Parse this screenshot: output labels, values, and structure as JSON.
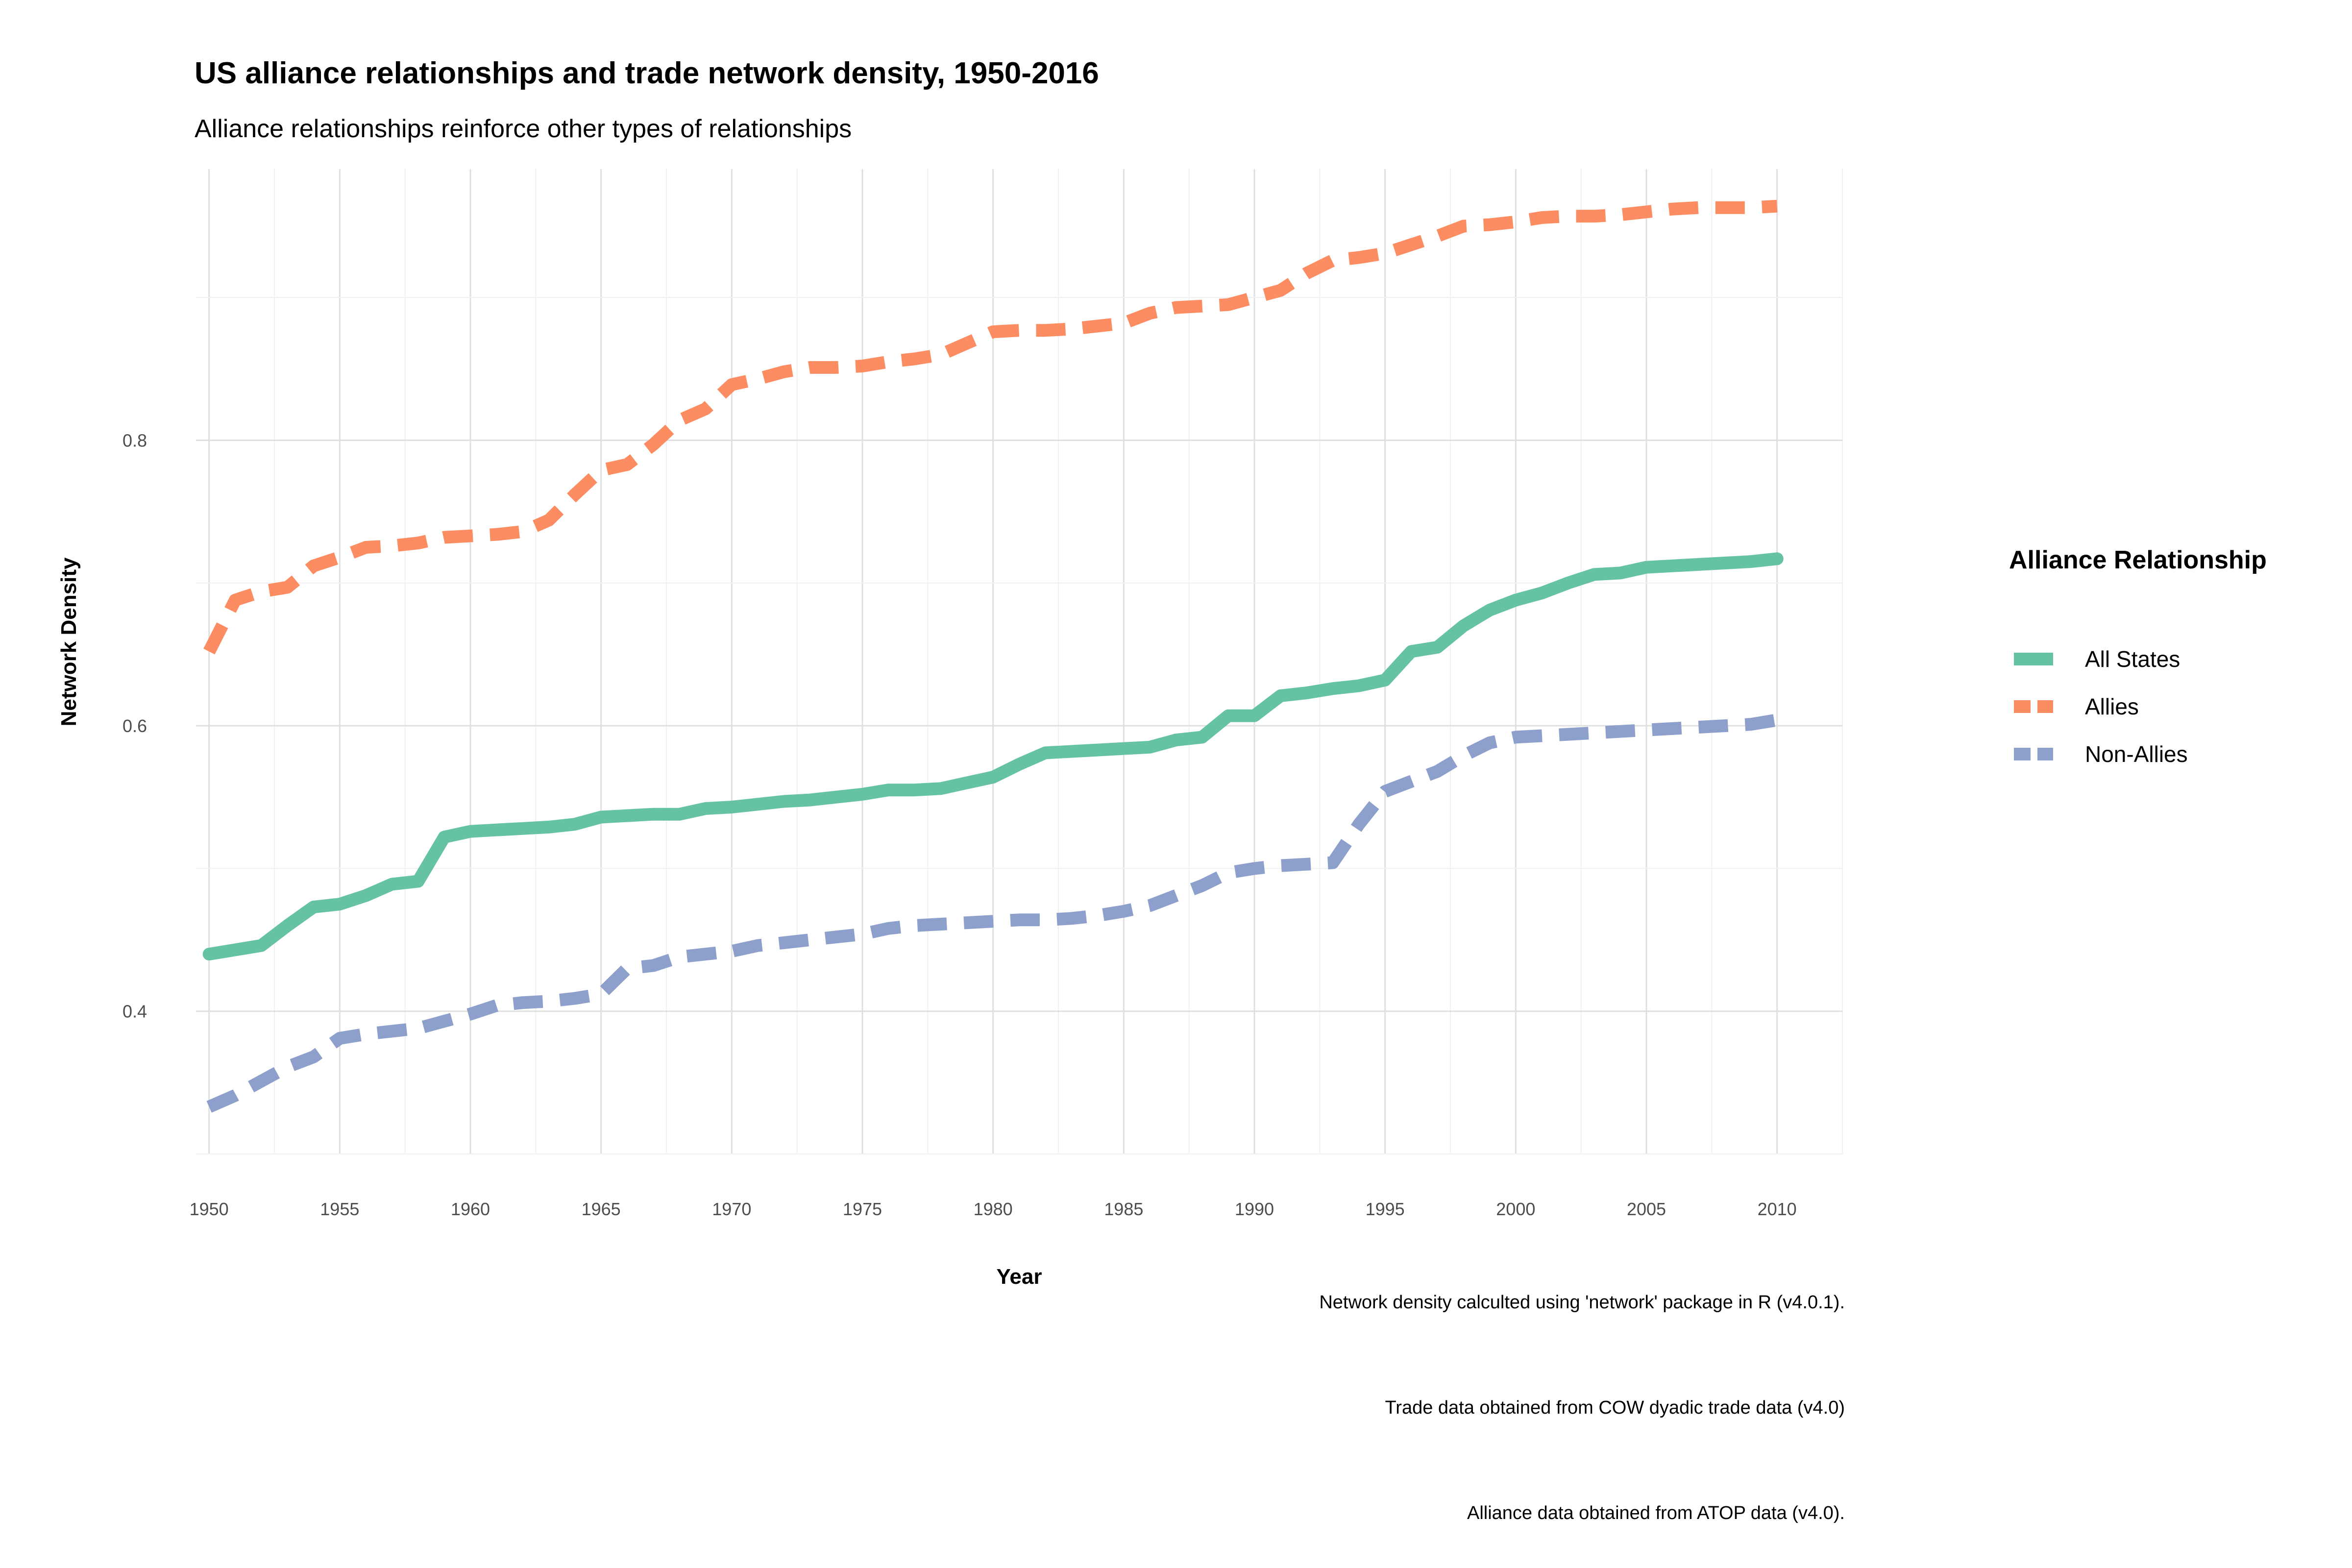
{
  "chart_data": {
    "type": "line",
    "title": "US alliance relationships and trade network density, 1950-2016",
    "subtitle": "Alliance relationships reinforce other types of relationships",
    "xlabel": "Year",
    "ylabel": "Network Density",
    "xlim": [
      1949.5,
      2012.5
    ],
    "ylim": [
      0.3,
      0.99
    ],
    "x_ticks": [
      1950,
      1955,
      1960,
      1965,
      1970,
      1975,
      1980,
      1985,
      1990,
      1995,
      2000,
      2005,
      2010
    ],
    "y_ticks": [
      0.4,
      0.6,
      0.8
    ],
    "x_tick_labels": [
      "1950",
      "1955",
      "1960",
      "1965",
      "1970",
      "1975",
      "1980",
      "1985",
      "1990",
      "1995",
      "2000",
      "2005",
      "2010"
    ],
    "y_tick_labels": [
      "0.4",
      "0.6",
      "0.8"
    ],
    "grid": true,
    "legend": {
      "title": "Alliance Relationship",
      "position": "right"
    },
    "x": [
      1950,
      1951,
      1952,
      1953,
      1954,
      1955,
      1956,
      1957,
      1958,
      1959,
      1960,
      1961,
      1962,
      1963,
      1964,
      1965,
      1966,
      1967,
      1968,
      1969,
      1970,
      1971,
      1972,
      1973,
      1974,
      1975,
      1976,
      1977,
      1978,
      1979,
      1980,
      1981,
      1982,
      1983,
      1984,
      1985,
      1986,
      1987,
      1988,
      1989,
      1990,
      1991,
      1992,
      1993,
      1994,
      1995,
      1996,
      1997,
      1998,
      1999,
      2000,
      2001,
      2002,
      2003,
      2004,
      2005,
      2006,
      2007,
      2008,
      2009,
      2010
    ],
    "series": [
      {
        "name": "All States",
        "color": "#66c2a5",
        "dash": "solid",
        "values": [
          0.44,
          0.443,
          0.446,
          0.46,
          0.473,
          0.475,
          0.481,
          0.489,
          0.491,
          0.522,
          0.526,
          0.527,
          0.528,
          0.529,
          0.531,
          0.536,
          0.537,
          0.538,
          0.538,
          0.542,
          0.543,
          0.545,
          0.547,
          0.548,
          0.55,
          0.552,
          0.555,
          0.555,
          0.556,
          0.56,
          0.564,
          0.573,
          0.581,
          0.582,
          0.583,
          0.584,
          0.585,
          0.59,
          0.592,
          0.607,
          0.607,
          0.621,
          0.623,
          0.626,
          0.628,
          0.632,
          0.652,
          0.655,
          0.67,
          0.681,
          0.688,
          0.693,
          0.7,
          0.706,
          0.707,
          0.711,
          0.712,
          0.713,
          0.714,
          0.715,
          0.717
        ]
      },
      {
        "name": "Allies",
        "color": "#fc8d62",
        "dash": "dashed",
        "values": [
          0.652,
          0.688,
          0.694,
          0.697,
          0.712,
          0.718,
          0.725,
          0.726,
          0.728,
          0.732,
          0.733,
          0.734,
          0.736,
          0.744,
          0.762,
          0.779,
          0.783,
          0.797,
          0.814,
          0.822,
          0.839,
          0.843,
          0.848,
          0.851,
          0.851,
          0.852,
          0.855,
          0.857,
          0.86,
          0.868,
          0.876,
          0.877,
          0.877,
          0.878,
          0.88,
          0.882,
          0.889,
          0.893,
          0.894,
          0.895,
          0.9,
          0.905,
          0.917,
          0.926,
          0.928,
          0.931,
          0.937,
          0.943,
          0.95,
          0.951,
          0.953,
          0.956,
          0.957,
          0.957,
          0.958,
          0.96,
          0.962,
          0.963,
          0.963,
          0.963,
          0.964
        ]
      },
      {
        "name": "Non-Allies",
        "color": "#8da0cb",
        "dash": "dashed",
        "values": [
          0.333,
          0.341,
          0.351,
          0.361,
          0.368,
          0.381,
          0.384,
          0.386,
          0.388,
          0.393,
          0.398,
          0.404,
          0.406,
          0.407,
          0.409,
          0.412,
          0.43,
          0.432,
          0.438,
          0.44,
          0.442,
          0.446,
          0.448,
          0.45,
          0.452,
          0.454,
          0.458,
          0.46,
          0.461,
          0.462,
          0.463,
          0.464,
          0.464,
          0.465,
          0.467,
          0.47,
          0.474,
          0.481,
          0.488,
          0.497,
          0.5,
          0.502,
          0.503,
          0.504,
          0.531,
          0.554,
          0.561,
          0.568,
          0.579,
          0.588,
          0.592,
          0.593,
          0.594,
          0.595,
          0.596,
          0.597,
          0.598,
          0.599,
          0.6,
          0.601,
          0.604
        ]
      }
    ],
    "captions": [
      "Network density calculted using 'network' package in R (v4.0.1).",
      "Trade data obtained from COW dyadic trade data (v4.0)",
      "Alliance data obtained from ATOP data (v4.0)."
    ]
  }
}
